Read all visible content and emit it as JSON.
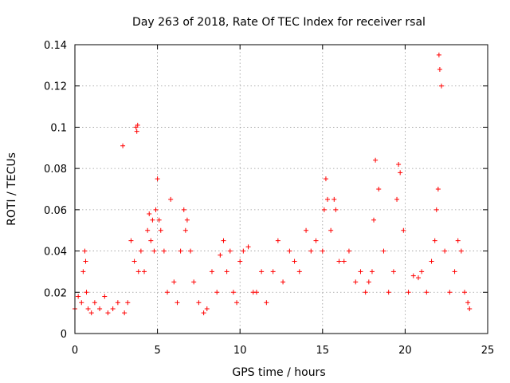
{
  "chart_data": {
    "type": "scatter",
    "title": "Day 263 of 2018, Rate Of TEC Index for receiver rsal",
    "xlabel": "GPS time / hours",
    "ylabel": "ROTI / TECUs",
    "xlim": [
      0,
      25
    ],
    "ylim": [
      0,
      0.14
    ],
    "xticks": [
      0,
      5,
      10,
      15,
      20,
      25
    ],
    "xtick_labels": [
      "0",
      "5",
      "10",
      "15",
      "20",
      "25"
    ],
    "yticks": [
      0,
      0.02,
      0.04,
      0.06,
      0.08,
      0.1,
      0.12,
      0.14
    ],
    "ytick_labels": [
      "0",
      "0.02",
      "0.04",
      "0.06",
      "0.08",
      "0.1",
      "0.12",
      "0.14"
    ],
    "grid": true,
    "marker": "+",
    "color": "#ff0000",
    "series": [
      {
        "name": "ROTI",
        "x": [
          0.0,
          0.2,
          0.4,
          0.5,
          0.6,
          0.65,
          0.7,
          0.8,
          1.0,
          1.2,
          1.5,
          1.8,
          2.0,
          2.3,
          2.6,
          2.9,
          3.0,
          3.2,
          3.4,
          3.6,
          3.7,
          3.75,
          3.8,
          3.85,
          4.0,
          4.2,
          4.4,
          4.5,
          4.6,
          4.7,
          4.8,
          4.9,
          5.0,
          5.1,
          5.2,
          5.4,
          5.6,
          5.8,
          6.0,
          6.2,
          6.4,
          6.6,
          6.7,
          6.8,
          7.0,
          7.2,
          7.5,
          7.8,
          8.0,
          8.3,
          8.6,
          8.8,
          9.0,
          9.2,
          9.4,
          9.6,
          9.8,
          10.0,
          10.2,
          10.5,
          10.8,
          11.0,
          11.3,
          11.6,
          12.0,
          12.3,
          12.6,
          13.0,
          13.3,
          13.6,
          14.0,
          14.3,
          14.6,
          15.0,
          15.1,
          15.2,
          15.3,
          15.5,
          15.7,
          15.8,
          16.0,
          16.3,
          16.6,
          17.0,
          17.3,
          17.6,
          17.8,
          18.0,
          18.1,
          18.2,
          18.4,
          18.7,
          19.0,
          19.3,
          19.5,
          19.6,
          19.7,
          19.9,
          20.2,
          20.5,
          20.8,
          21.0,
          21.3,
          21.6,
          21.8,
          21.9,
          22.0,
          22.05,
          22.1,
          22.2,
          22.4,
          22.7,
          23.0,
          23.2,
          23.4,
          23.6,
          23.8,
          23.9
        ],
        "y": [
          0.012,
          0.018,
          0.015,
          0.03,
          0.04,
          0.035,
          0.02,
          0.012,
          0.01,
          0.015,
          0.012,
          0.018,
          0.01,
          0.012,
          0.015,
          0.091,
          0.01,
          0.015,
          0.045,
          0.035,
          0.1,
          0.098,
          0.101,
          0.03,
          0.04,
          0.03,
          0.05,
          0.058,
          0.045,
          0.055,
          0.04,
          0.06,
          0.075,
          0.055,
          0.05,
          0.04,
          0.02,
          0.065,
          0.025,
          0.015,
          0.04,
          0.06,
          0.05,
          0.055,
          0.04,
          0.025,
          0.015,
          0.01,
          0.012,
          0.03,
          0.02,
          0.038,
          0.045,
          0.03,
          0.04,
          0.02,
          0.015,
          0.035,
          0.04,
          0.042,
          0.02,
          0.02,
          0.03,
          0.015,
          0.03,
          0.045,
          0.025,
          0.04,
          0.035,
          0.03,
          0.05,
          0.04,
          0.045,
          0.04,
          0.06,
          0.075,
          0.065,
          0.05,
          0.065,
          0.06,
          0.035,
          0.035,
          0.04,
          0.025,
          0.03,
          0.02,
          0.025,
          0.03,
          0.055,
          0.084,
          0.07,
          0.04,
          0.02,
          0.03,
          0.065,
          0.082,
          0.078,
          0.05,
          0.02,
          0.028,
          0.027,
          0.03,
          0.02,
          0.035,
          0.045,
          0.06,
          0.07,
          0.135,
          0.128,
          0.12,
          0.04,
          0.02,
          0.03,
          0.045,
          0.04,
          0.02,
          0.015,
          0.012
        ]
      }
    ]
  }
}
